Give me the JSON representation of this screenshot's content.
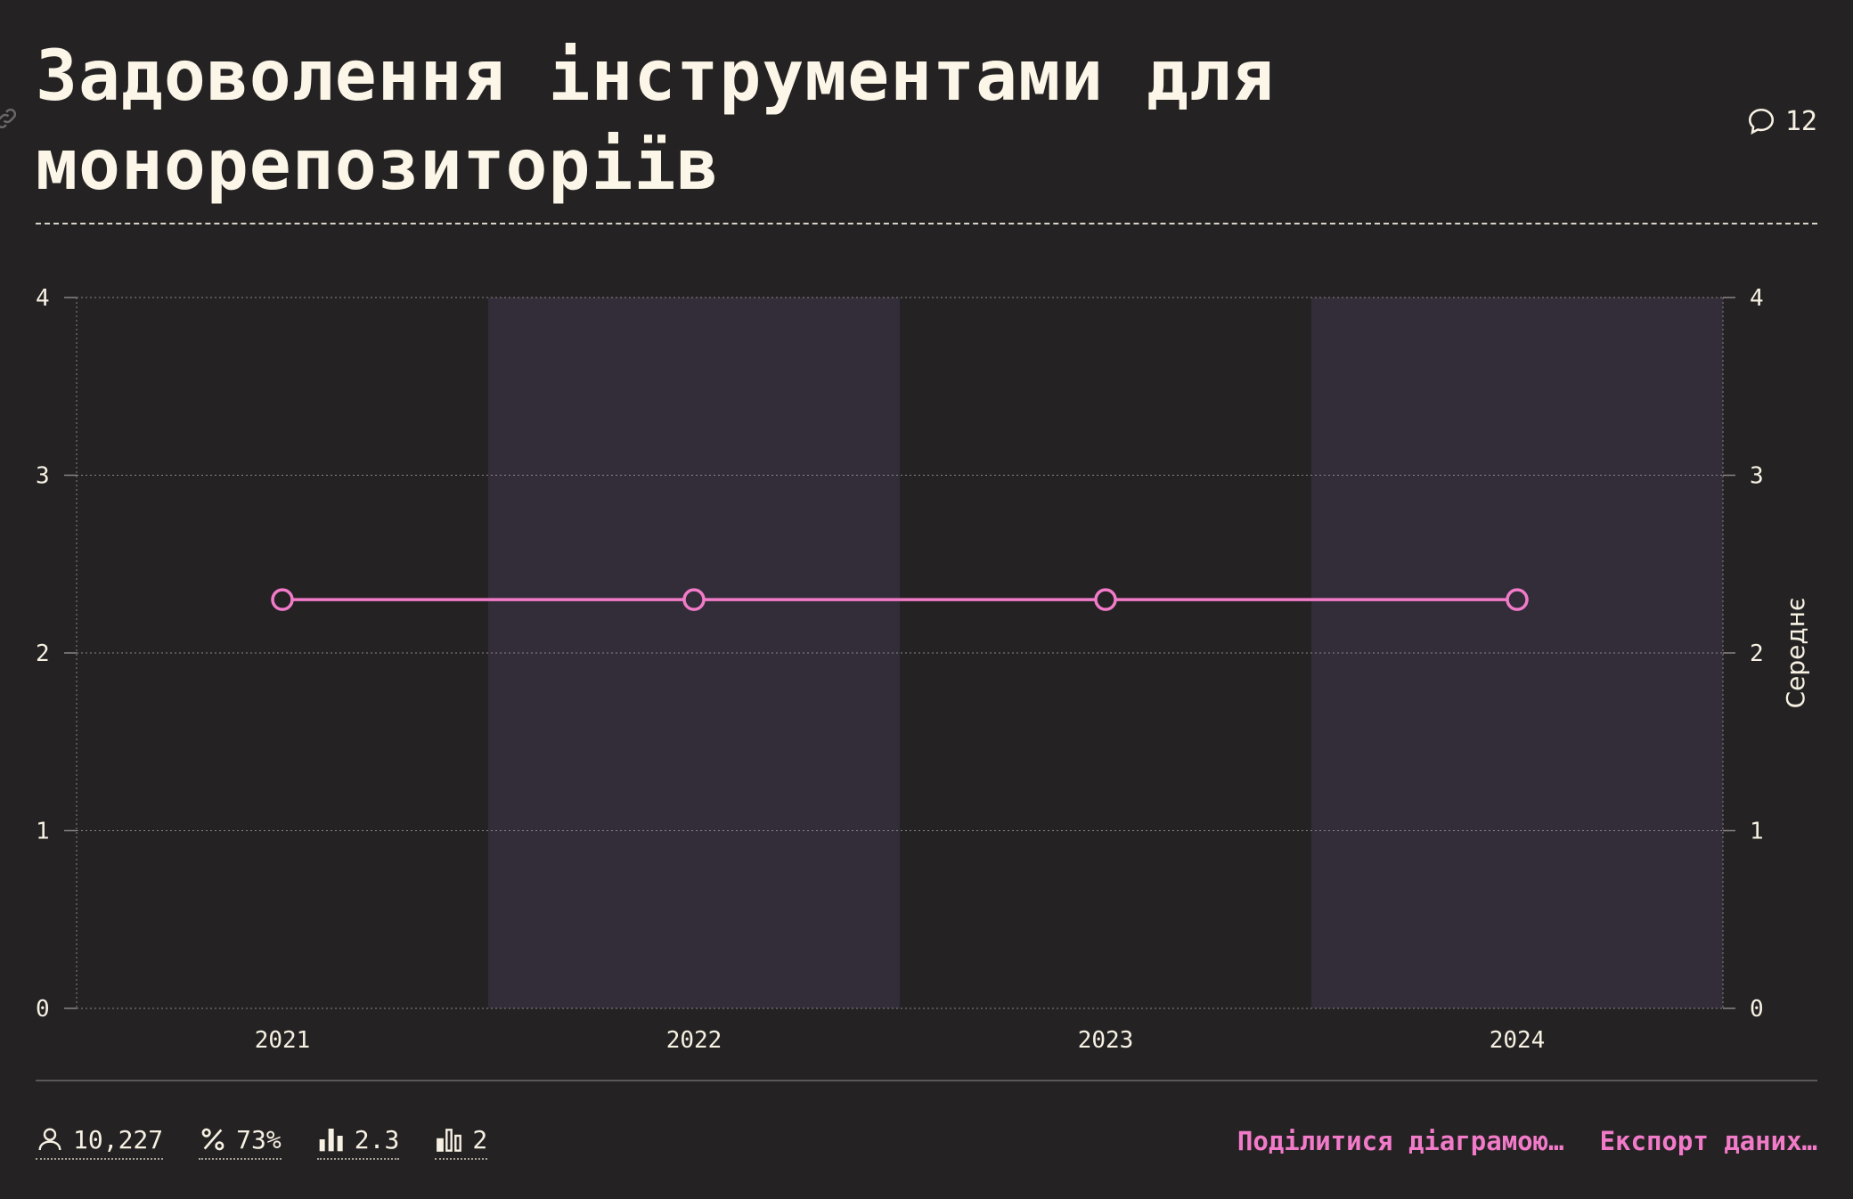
{
  "header": {
    "title": "Задоволення інструментами для монорепозиторіїв",
    "comments_count": "12"
  },
  "icons": {
    "link": "link-icon",
    "comments": "comment-bubble-icon",
    "respondents": "user-icon",
    "percent": "percent-icon",
    "mean": "bar-chart-icon",
    "median": "bar-chart-outline-icon"
  },
  "stats": {
    "respondents": "10,227",
    "percentage": "73%",
    "mean": "2.3",
    "median": "2"
  },
  "actions": {
    "share": "Поділитися діаграмою…",
    "export": "Експорт даних…"
  },
  "colors": {
    "background": "#252223",
    "band_alt": "#322d38",
    "line": "#f27bc9",
    "text": "#f6f1e3",
    "accent": "#f27bc9"
  },
  "chart_data": {
    "type": "line",
    "categories": [
      "2021",
      "2022",
      "2023",
      "2024"
    ],
    "series": [
      {
        "values": [
          2.3,
          2.3,
          2.3,
          2.3
        ]
      }
    ],
    "ylabel_right": "Середнє",
    "ylim": [
      0,
      4
    ],
    "yticks": [
      "0",
      "1",
      "2",
      "3",
      "4"
    ],
    "grid": true,
    "alternating_bands": true
  }
}
